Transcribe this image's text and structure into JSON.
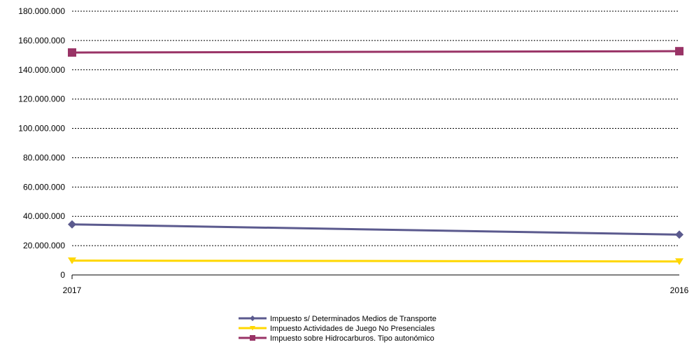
{
  "chart_data": {
    "type": "line",
    "categories": [
      "2017",
      "2016"
    ],
    "ylim": [
      0,
      180000000
    ],
    "y_ticks": [
      0,
      20000000,
      40000000,
      60000000,
      80000000,
      100000000,
      120000000,
      140000000,
      160000000,
      180000000
    ],
    "y_tick_labels": [
      "0",
      "20.000.000",
      "40.000.000",
      "60.000.000",
      "80.000.000",
      "100.000.000",
      "120.000.000",
      "140.000.000",
      "160.000.000",
      "180.000.000"
    ],
    "grid": "horizontal dashed",
    "legend_position": "bottom",
    "series": [
      {
        "name": "Impuesto s/ Determinados Medios de Transporte",
        "values": [
          34500000,
          27500000
        ],
        "color": "#5B5A8E",
        "marker": "diamond"
      },
      {
        "name": "Impuesto Actividades de Juego No Presenciales",
        "values": [
          9800000,
          9200000
        ],
        "color": "#FFD700",
        "marker": "triangle-down"
      },
      {
        "name": "Impuesto sobre Hidrocarburos. Tipo autonómico",
        "values": [
          151800000,
          152700000
        ],
        "color": "#993366",
        "marker": "square"
      }
    ]
  }
}
